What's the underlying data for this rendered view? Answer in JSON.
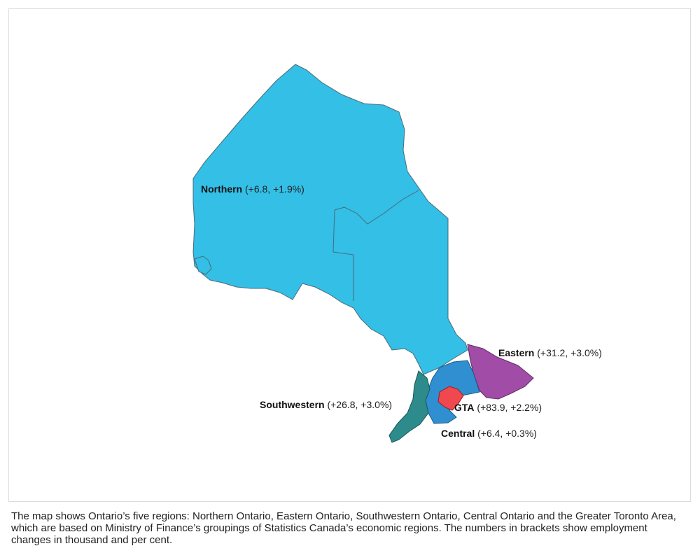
{
  "regions": [
    {
      "key": "northern",
      "name": "Northern",
      "change": "(+6.8, +1.9%)",
      "color": "#33bfe6"
    },
    {
      "key": "eastern",
      "name": "Eastern",
      "change": "(+31.2, +3.0%)",
      "color": "#a14ca6"
    },
    {
      "key": "southwestern",
      "name": "Southwestern",
      "change": "(+26.8, +3.0%)",
      "color": "#2e8b8b"
    },
    {
      "key": "gta",
      "name": "GTA",
      "change": "(+83.9, +2.2%)",
      "color": "#f0484e"
    },
    {
      "key": "central",
      "name": "Central",
      "change": "(+6.4, +0.3%)",
      "color": "#2f8fd1"
    }
  ],
  "caption": "The map shows Ontario’s five regions: Northern Ontario, Eastern Ontario, Southwestern Ontario, Central Ontario and the Greater Toronto Area, which are based on Ministry of Finance’s groupings of Statistics Canada’s economic regions. The numbers in brackets show employment changes in thousand and per cent."
}
